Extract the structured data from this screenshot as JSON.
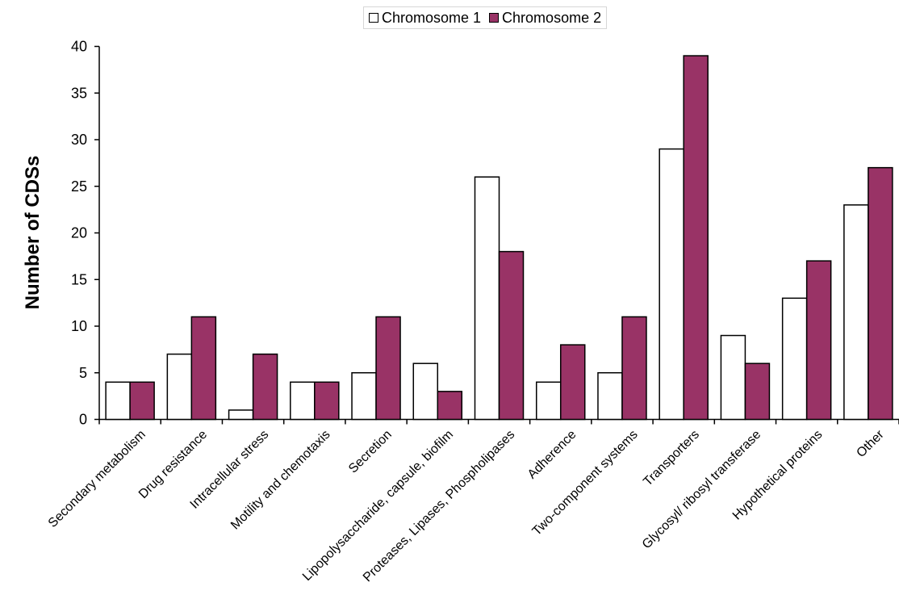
{
  "chart_data": {
    "type": "bar",
    "title": "",
    "xlabel": "",
    "ylabel": "Number of CDSs",
    "ylim": [
      0,
      40
    ],
    "yticks": [
      0,
      5,
      10,
      15,
      20,
      25,
      30,
      35,
      40
    ],
    "grid": false,
    "legend_position": "top-center",
    "categories": [
      "Secondary metabolism",
      "Drug resistance",
      "Intracellular stress",
      "Motility and chemotaxis",
      "Secretion",
      "Lipopolysaccharide, capsule, biofilm",
      "Proteases, Lipases, Phospholipases",
      "Adherence",
      "Two-component systems",
      "Transporters",
      "Glycosyl/ ribosyl transferase",
      "Hypothetical proteins",
      "Other"
    ],
    "series": [
      {
        "name": "Chromosome 1",
        "color": "#ffffff",
        "values": [
          4,
          7,
          1,
          4,
          5,
          6,
          26,
          4,
          5,
          29,
          9,
          13,
          23
        ]
      },
      {
        "name": "Chromosome 2",
        "color": "#993366",
        "values": [
          4,
          11,
          7,
          4,
          11,
          3,
          18,
          8,
          11,
          39,
          6,
          17,
          27
        ]
      }
    ]
  }
}
